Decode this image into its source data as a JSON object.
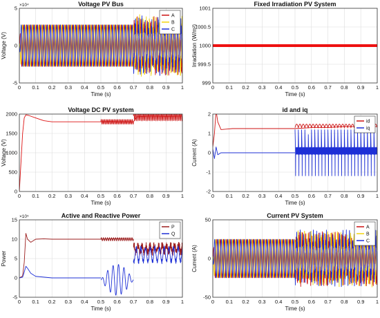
{
  "colors": {
    "red": "#cc1111",
    "darkred": "#9b1c1c",
    "yellow": "#f2d40a",
    "blue": "#1d2fd6",
    "grid": "#dcdcdc"
  },
  "chart_data": [
    {
      "id": "voltage-pv-bus",
      "type": "line",
      "title": "Voltage PV Bus",
      "xlabel": "Time (s)",
      "ylabel": "Voltage (V)",
      "xlim": [
        0,
        1
      ],
      "ylim": [
        -5,
        5
      ],
      "multiplier": "×10⁴",
      "xticks": [
        "0",
        "0.1",
        "0.2",
        "0.3",
        "0.4",
        "0.5",
        "0.6",
        "0.7",
        "0.8",
        "0.9",
        "1"
      ],
      "yticks": [
        "-5",
        "0",
        "5"
      ],
      "legend": "top-right",
      "grid": true,
      "series": [
        {
          "name": "A",
          "color": "#cc1111",
          "amplitude": 2.8,
          "steady_until": 0.7
        },
        {
          "name": "B",
          "color": "#f2d40a",
          "amplitude": 2.8,
          "steady_until": 0.7
        },
        {
          "name": "C",
          "color": "#1d2fd6",
          "amplitude": 2.8,
          "steady_until": 0.7
        }
      ]
    },
    {
      "id": "fixed-irradiation",
      "type": "line",
      "title": "Fixed Irradiation PV System",
      "xlabel": "Time (s)",
      "ylabel": "Irradiation  (W/m²)",
      "xlim": [
        0,
        1
      ],
      "ylim": [
        999,
        1001
      ],
      "xticks": [
        "0",
        "0.1",
        "0.2",
        "0.3",
        "0.4",
        "0.5",
        "0.6",
        "0.7",
        "0.8",
        "0.9",
        "1"
      ],
      "yticks": [
        "999",
        "999.5",
        "1000",
        "1000.5",
        "1001"
      ],
      "grid": true,
      "series": [
        {
          "name": "",
          "color": "#ee1111",
          "x": [
            0,
            1
          ],
          "y": [
            1000,
            1000
          ]
        }
      ]
    },
    {
      "id": "voltage-dc",
      "type": "line",
      "title": "Voltage DC PV system",
      "xlabel": "Time (s)",
      "ylabel": "Voltage (V)",
      "xlim": [
        0,
        1
      ],
      "ylim": [
        0,
        2000
      ],
      "xticks": [
        "0",
        "0.1",
        "0.2",
        "0.3",
        "0.4",
        "0.5",
        "0.6",
        "0.7",
        "0.8",
        "0.9",
        "1"
      ],
      "yticks": [
        "0",
        "500",
        "1000",
        "1500",
        "2000"
      ],
      "grid": true,
      "series": [
        {
          "name": "",
          "color": "#dd1111",
          "x": [
            0,
            0.02,
            0.03,
            0.04,
            0.06,
            0.1,
            0.15,
            0.2,
            0.3,
            0.4,
            0.5,
            0.55,
            0.6,
            0.7,
            0.72,
            0.8,
            0.9,
            1.0
          ],
          "y": [
            0,
            1500,
            1900,
            1980,
            1960,
            1900,
            1830,
            1800,
            1800,
            1800,
            1800,
            1810,
            1800,
            1800,
            1930,
            1950,
            1940,
            1950
          ]
        }
      ]
    },
    {
      "id": "id-iq",
      "type": "line",
      "title": "id and iq",
      "xlabel": "Time (s)",
      "ylabel": "Current (A)",
      "xlim": [
        0,
        1
      ],
      "ylim": [
        -2,
        2
      ],
      "xticks": [
        "0",
        "0.1",
        "0.2",
        "0.3",
        "0.4",
        "0.5",
        "0.6",
        "0.7",
        "0.8",
        "0.9",
        "1"
      ],
      "yticks": [
        "-2",
        "-1",
        "0",
        "1",
        "2"
      ],
      "legend": "top-right",
      "grid": true,
      "series": [
        {
          "name": "id",
          "color": "#cc1111",
          "x": [
            0,
            0.01,
            0.02,
            0.03,
            0.05,
            0.08,
            0.12,
            0.2,
            0.3,
            0.4,
            0.5,
            0.6,
            0.7,
            0.8,
            0.9,
            1.0
          ],
          "y": [
            0.3,
            1.0,
            2.2,
            1.6,
            1.2,
            1.22,
            1.25,
            1.25,
            1.25,
            1.25,
            1.25,
            1.3,
            1.3,
            1.35,
            1.35,
            1.35
          ]
        },
        {
          "name": "iq",
          "color": "#1d2fd6",
          "x": [
            0,
            0.01,
            0.02,
            0.03,
            0.05,
            0.1,
            0.2,
            0.3,
            0.4,
            0.5
          ],
          "y": [
            0.2,
            -0.3,
            0.3,
            -0.1,
            0,
            0,
            0,
            0,
            0,
            0
          ]
        }
      ]
    },
    {
      "id": "active-reactive-power",
      "type": "line",
      "title": "Active and Reactive Power",
      "xlabel": "Time (s)",
      "ylabel": "Power",
      "xlim": [
        0,
        1
      ],
      "ylim": [
        -5,
        15
      ],
      "multiplier": "×10⁵",
      "xticks": [
        "0",
        "0.1",
        "0.2",
        "0.3",
        "0.4",
        "0.5",
        "0.6",
        "0.7",
        "0.8",
        "0.9",
        "1"
      ],
      "yticks": [
        "-5",
        "0",
        "5",
        "10",
        "15"
      ],
      "legend": "top-right",
      "grid": true,
      "series": [
        {
          "name": "P",
          "color": "#9b1c1c",
          "x": [
            0,
            0.02,
            0.03,
            0.04,
            0.05,
            0.07,
            0.1,
            0.15,
            0.2,
            0.3,
            0.4,
            0.5,
            0.6,
            0.7
          ],
          "y": [
            0,
            0.5,
            4,
            11.5,
            10,
            9.2,
            10,
            10.1,
            10,
            10,
            10,
            10,
            10.1,
            10
          ]
        },
        {
          "name": "Q",
          "color": "#1d2fd6",
          "x": [
            0,
            0.02,
            0.03,
            0.04,
            0.05,
            0.07,
            0.1,
            0.15,
            0.2,
            0.3,
            0.4,
            0.5
          ],
          "y": [
            0,
            0.2,
            1.5,
            3,
            2.5,
            1.2,
            0.4,
            0.2,
            0,
            0,
            0,
            0
          ]
        }
      ]
    },
    {
      "id": "current-pv-system",
      "type": "line",
      "title": "Current PV System",
      "xlabel": "Time (s)",
      "ylabel": "Current (A)",
      "xlim": [
        0,
        1
      ],
      "ylim": [
        -50,
        50
      ],
      "xticks": [
        "0",
        "0.1",
        "0.2",
        "0.3",
        "0.4",
        "0.5",
        "0.6",
        "0.7",
        "0.8",
        "0.9",
        "1"
      ],
      "yticks": [
        "-50",
        "0",
        "50"
      ],
      "legend": "top-right",
      "grid": true,
      "series": [
        {
          "name": "A",
          "color": "#cc1111",
          "amplitude": 25,
          "steady_until": 0.5
        },
        {
          "name": "B",
          "color": "#f2d40a",
          "amplitude": 25,
          "steady_until": 0.5
        },
        {
          "name": "C",
          "color": "#1d2fd6",
          "amplitude": 25,
          "steady_until": 0.5
        }
      ]
    }
  ]
}
